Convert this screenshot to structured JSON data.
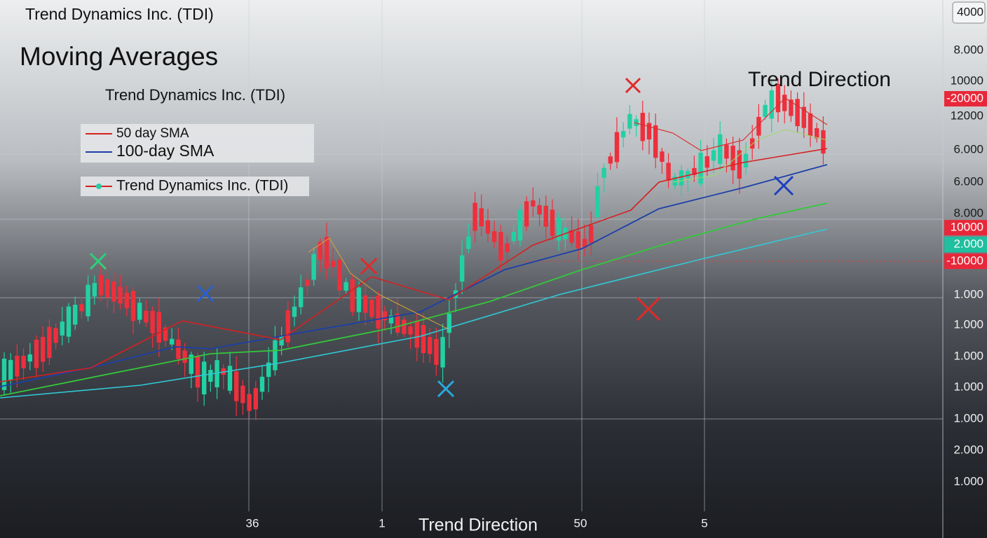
{
  "header": {
    "title": "Trend Dynamics Inc. (TDI)"
  },
  "chart": {
    "title": "Moving Averages",
    "subtitle": "Trend Dynamics Inc. (TDI)",
    "annotation": "Trend Direction",
    "legend": [
      {
        "label": "50 day SMA"
      },
      {
        "label": "100-day SMA"
      }
    ],
    "series_legend": "Trend Dynamics Inc. (TDI)",
    "right_axis": [
      "4000",
      "8.000",
      "10000",
      "-20000",
      "12000",
      "6.000",
      "6.000",
      "8.000",
      "10000",
      "2.000",
      "-10000",
      "1.000",
      "1.000",
      "1.000",
      "1.000",
      "1.000",
      "2.000",
      "1.000"
    ],
    "bottom_axis": [
      "36",
      "1",
      "50",
      "5"
    ],
    "x_axis_title": "Trend Direction"
  }
}
